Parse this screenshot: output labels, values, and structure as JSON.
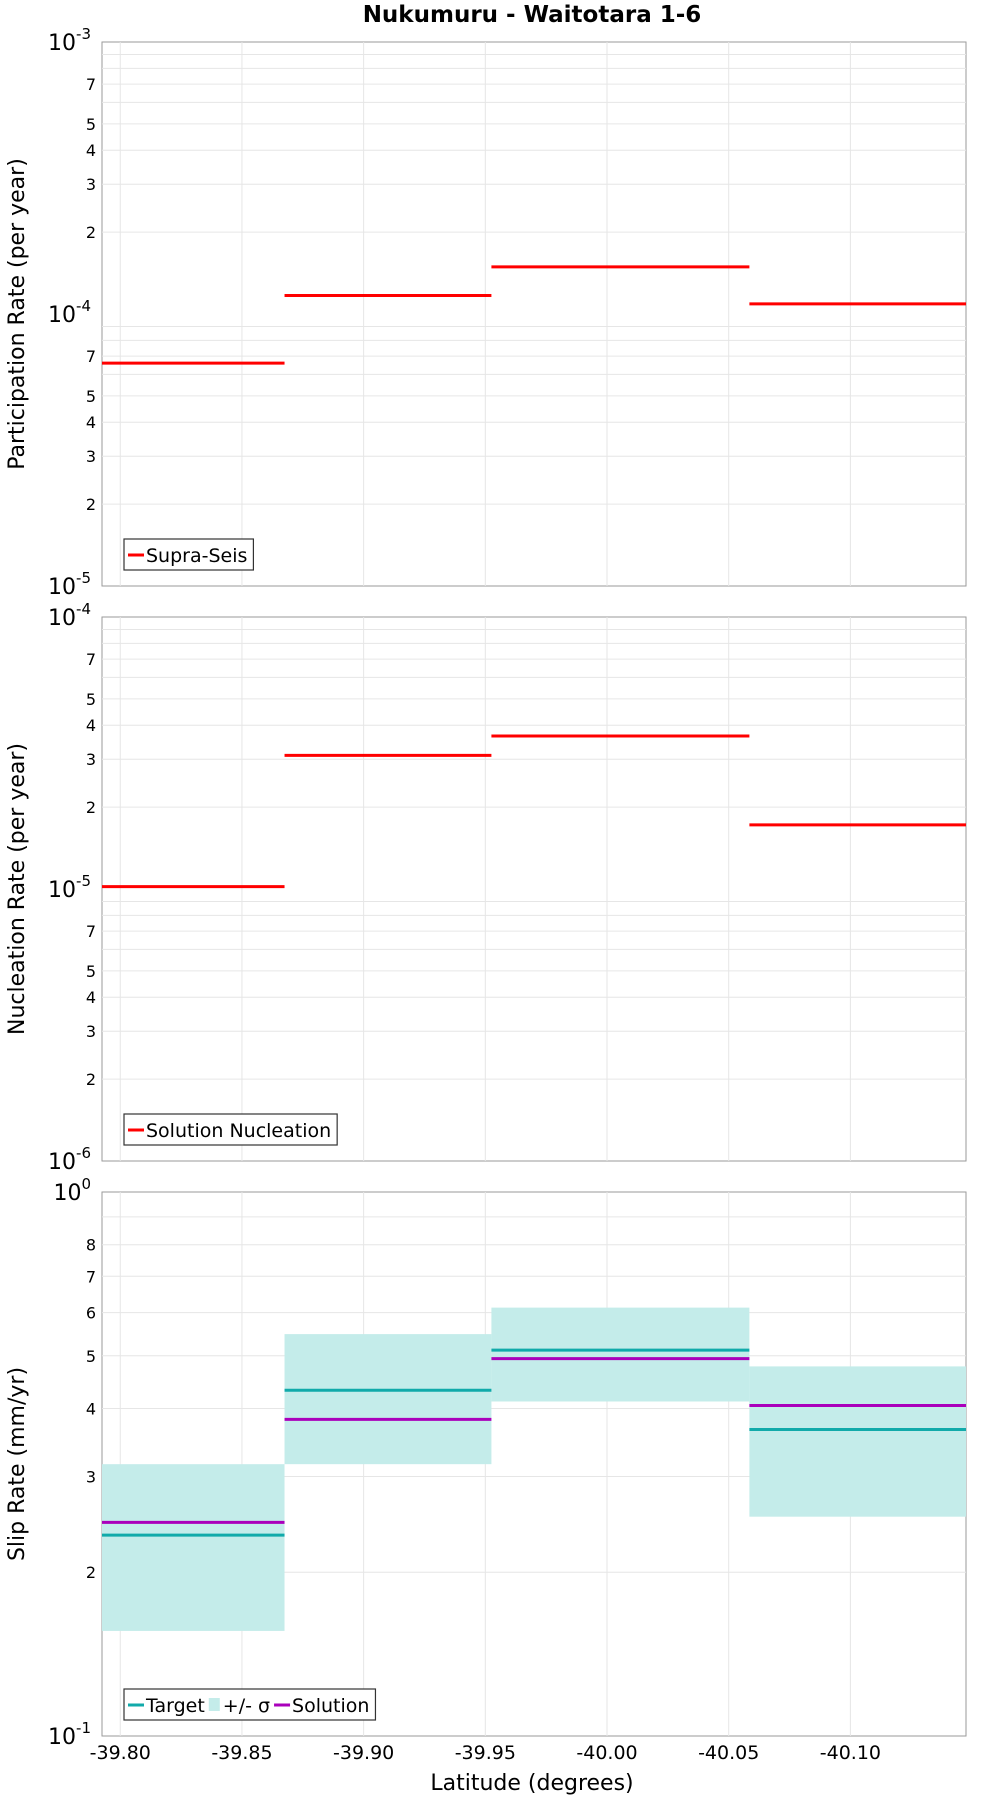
{
  "title": "Nukumuru - Waitotara 1-6",
  "xlabel": "Latitude (degrees)",
  "x_ticks": [
    "-39.80",
    "-39.85",
    "-39.90",
    "-39.95",
    "-40.00",
    "-40.05",
    "-40.10"
  ],
  "x_tick_values": [
    -39.8,
    -39.85,
    -39.9,
    -39.95,
    -40.0,
    -40.05,
    -40.1
  ],
  "xlim": [
    -39.7925,
    -40.1475
  ],
  "colors": {
    "red": "#ff0000",
    "teal": "#11aaaa",
    "purple": "#aa00bb",
    "band": "#c4ecea"
  },
  "chart_data": [
    {
      "type": "line",
      "name": "participation",
      "ylabel": "Participation Rate (per year)",
      "yscale": "log",
      "ylim": [
        1e-05,
        0.001
      ],
      "y_decades": [
        {
          "base": "10",
          "exp": "-3",
          "value": 0.001
        },
        {
          "base": "10",
          "exp": "-4",
          "value": 0.0001
        },
        {
          "base": "10",
          "exp": "-5",
          "value": 1e-05
        }
      ],
      "y_minor_labels": [
        "7",
        "5",
        "4",
        "3",
        "2"
      ],
      "legend": [
        "Supra-Seis"
      ],
      "series": [
        {
          "name": "Supra-Seis",
          "color": "#ff0000",
          "segments": [
            {
              "x0": -39.7925,
              "x1": -39.8675,
              "y": 6.6e-05
            },
            {
              "x0": -39.8675,
              "x1": -39.9525,
              "y": 0.000117
            },
            {
              "x0": -39.9525,
              "x1": -40.0585,
              "y": 0.000149
            },
            {
              "x0": -40.0585,
              "x1": -40.1475,
              "y": 0.000109
            }
          ]
        }
      ]
    },
    {
      "type": "line",
      "name": "nucleation",
      "ylabel": "Nucleation Rate (per year)",
      "yscale": "log",
      "ylim": [
        1e-06,
        0.0001
      ],
      "y_decades": [
        {
          "base": "10",
          "exp": "-4",
          "value": 0.0001
        },
        {
          "base": "10",
          "exp": "-5",
          "value": 1e-05
        },
        {
          "base": "10",
          "exp": "-6",
          "value": 1e-06
        }
      ],
      "y_minor_labels": [
        "7",
        "5",
        "4",
        "3",
        "2"
      ],
      "legend": [
        "Solution Nucleation"
      ],
      "series": [
        {
          "name": "Solution Nucleation",
          "color": "#ff0000",
          "segments": [
            {
              "x0": -39.7925,
              "x1": -39.8675,
              "y": 1.02e-05
            },
            {
              "x0": -39.8675,
              "x1": -39.9525,
              "y": 3.1e-05
            },
            {
              "x0": -39.9525,
              "x1": -40.0585,
              "y": 3.65e-05
            },
            {
              "x0": -40.0585,
              "x1": -40.1475,
              "y": 1.72e-05
            }
          ]
        }
      ]
    },
    {
      "type": "line",
      "name": "slip",
      "ylabel": "Slip Rate (mm/yr)",
      "yscale": "log",
      "ylim": [
        0.1,
        1.0
      ],
      "y_decades": [
        {
          "base": "10",
          "exp": "0",
          "value": 1.0
        },
        {
          "base": "10",
          "exp": "-1",
          "value": 0.1
        }
      ],
      "y_minor_labels": [
        "8",
        "7",
        "6",
        "5",
        "4",
        "3",
        "2"
      ],
      "legend": [
        "Target",
        "+/- σ",
        "Solution"
      ],
      "band": {
        "name": "+/- σ",
        "color": "#c4ecea",
        "segments": [
          {
            "x0": -39.7925,
            "x1": -39.8675,
            "low": 0.156,
            "high": 0.316
          },
          {
            "x0": -39.8675,
            "x1": -39.9525,
            "low": 0.316,
            "high": 0.548
          },
          {
            "x0": -39.9525,
            "x1": -40.0585,
            "low": 0.412,
            "high": 0.613
          },
          {
            "x0": -40.0585,
            "x1": -40.1475,
            "low": 0.253,
            "high": 0.478
          }
        ]
      },
      "series": [
        {
          "name": "Target",
          "color": "#11aaaa",
          "segments": [
            {
              "x0": -39.7925,
              "x1": -39.8675,
              "y": 0.234
            },
            {
              "x0": -39.8675,
              "x1": -39.9525,
              "y": 0.432
            },
            {
              "x0": -39.9525,
              "x1": -40.0585,
              "y": 0.512
            },
            {
              "x0": -40.0585,
              "x1": -40.1475,
              "y": 0.366
            }
          ]
        },
        {
          "name": "Solution",
          "color": "#aa00bb",
          "segments": [
            {
              "x0": -39.7925,
              "x1": -39.8675,
              "y": 0.247
            },
            {
              "x0": -39.8675,
              "x1": -39.9525,
              "y": 0.382
            },
            {
              "x0": -39.9525,
              "x1": -40.0585,
              "y": 0.494
            },
            {
              "x0": -40.0585,
              "x1": -40.1475,
              "y": 0.405
            }
          ]
        }
      ]
    }
  ]
}
